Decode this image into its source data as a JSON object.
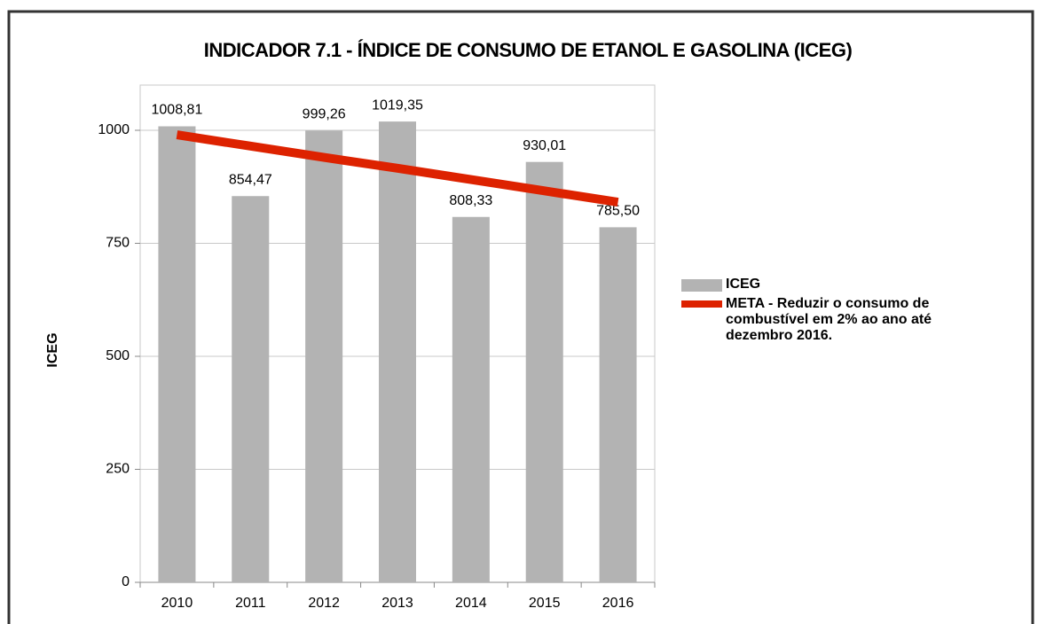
{
  "chart_data": {
    "type": "bar",
    "title": "INDICADOR 7.1 - ÍNDICE DE CONSUMO DE ETANOL E GASOLINA (ICEG)",
    "y_label": "ICEG",
    "categories": [
      "2010",
      "2011",
      "2012",
      "2013",
      "2014",
      "2015",
      "2016"
    ],
    "series": [
      {
        "name": "ICEG",
        "color": "#b3b3b3",
        "type": "bar",
        "values": [
          1008.81,
          854.47,
          999.26,
          1019.35,
          808.33,
          930.01,
          785.5
        ],
        "value_labels": [
          "1008,81",
          "854,47",
          "999,26",
          "1019,35",
          "808,33",
          "930,01",
          "785,50"
        ]
      },
      {
        "name": "META - Reduzir o consumo de combustível em 2% ao ano até dezembro 2016.",
        "color": "#dd2200",
        "type": "line",
        "values": [
          990,
          965,
          940,
          916,
          891,
          866,
          841
        ]
      }
    ],
    "ylim": [
      0,
      1100
    ],
    "yticks": [
      0,
      250,
      500,
      750,
      1000
    ],
    "grid": true,
    "legend": "right"
  }
}
